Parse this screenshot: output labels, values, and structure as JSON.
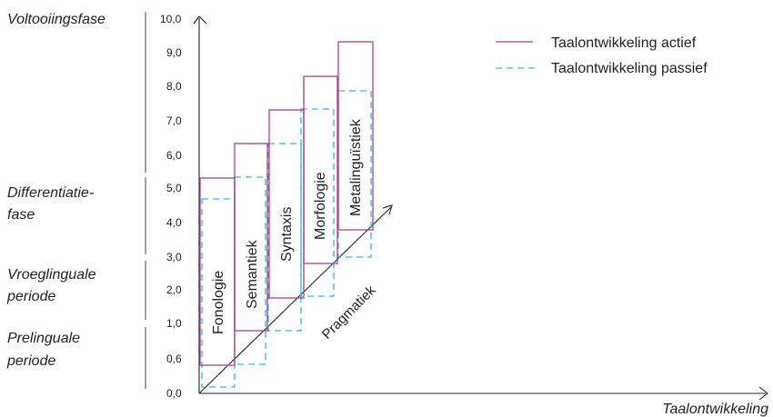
{
  "phases": [
    {
      "id": "voltooiing",
      "lines": [
        "Voltooiingsfase"
      ]
    },
    {
      "id": "differentiatie",
      "lines": [
        "Differentiatie-",
        "fase"
      ]
    },
    {
      "id": "vroeglinguaal",
      "lines": [
        "Vroeglinguale",
        "periode"
      ]
    },
    {
      "id": "prelinguaal",
      "lines": [
        "Prelinguale",
        "periode"
      ]
    }
  ],
  "y_ticks": [
    "10,0",
    "9,0",
    "8,0",
    "7,0",
    "6,0",
    "5,0",
    "4,0",
    "3,0",
    "2,0",
    "1,0",
    "0,6",
    "0,0"
  ],
  "x_axis_label": "Taalontwikkeling",
  "diagonal_label": "Pragmatiek",
  "legend": {
    "active": "Taalontwikkeling actief",
    "passive": "Taalontwikkeling passief"
  },
  "components": [
    {
      "name": "Fonologie",
      "active": [
        "0,6",
        "5,0"
      ],
      "passive": [
        "0,0",
        "4,5"
      ]
    },
    {
      "name": "Semantiek",
      "active": [
        "1,0",
        "6,0"
      ],
      "passive": [
        "0,6",
        "5,0"
      ]
    },
    {
      "name": "Syntaxis",
      "active": [
        "2,0",
        "7,0"
      ],
      "passive": [
        "1,0",
        "6,0"
      ]
    },
    {
      "name": "Morfologie",
      "active": [
        "3,0",
        "8,0"
      ],
      "passive": [
        "2,0",
        "7,0"
      ]
    },
    {
      "name": "Metalinguïstiek",
      "active": [
        "4,0",
        "9,0"
      ],
      "passive": [
        "3,0",
        "7,5"
      ]
    }
  ],
  "colors": {
    "active": "#a3428c",
    "passive": "#3db3d9",
    "axis": "#222222"
  }
}
